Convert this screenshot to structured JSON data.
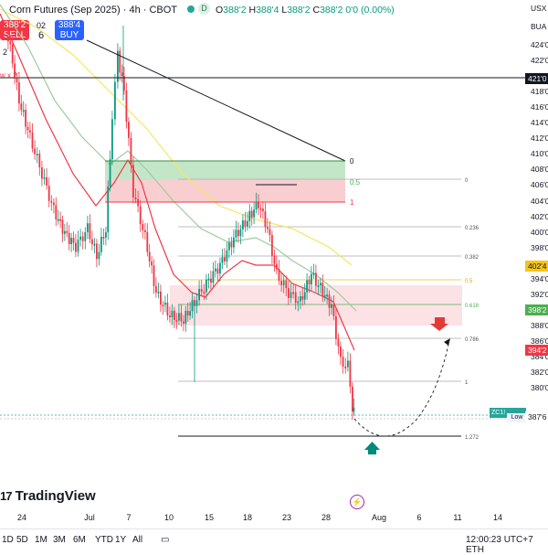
{
  "header": {
    "title": "Corn Futures (Sep 2025) · 4h · CBOT",
    "exchange_badge": "D",
    "open_label": "O",
    "open": "388'2",
    "high_label": "H",
    "high": "388'4",
    "low_label": "L",
    "low": "388'2",
    "close_label": "C",
    "close": "388'2",
    "change": "0'0 (0.00%)"
  },
  "trade": {
    "sell_price": "388'2",
    "sell_label": "SELL",
    "buy_price": "388'4",
    "buy_label": "BUY",
    "spread_top": "02",
    "spread_main": "6"
  },
  "left_label": "w x 21",
  "left_number": "2",
  "price_axis": {
    "currency": "USX",
    "unit": "BUA",
    "ticks": [
      "424'0",
      "422'0",
      "420'0",
      "418'0",
      "416'0",
      "414'0",
      "412'0",
      "410'0",
      "408'0",
      "406'0",
      "404'0",
      "402'0",
      "400'0",
      "398'0",
      "396'0",
      "394'0",
      "392'0",
      "390'0",
      "388'0",
      "386'0",
      "384'0",
      "382'0",
      "380'0"
    ],
    "tags": [
      {
        "text": "421'0",
        "color": "#131722"
      },
      {
        "text": "402'4",
        "color": "#f5c518"
      },
      {
        "text": "398'2",
        "color": "#4caf50"
      },
      {
        "text": "394'2",
        "color": "#f23645"
      }
    ],
    "last_price": "387'6",
    "zc_label": "ZC1!",
    "low_label": "Low"
  },
  "fib": {
    "levels": [
      "0",
      "0.236",
      "0.382",
      "0.5",
      "0.618",
      "0.786",
      "1",
      "1.272"
    ],
    "mini_levels": [
      "0",
      "0.5",
      "1"
    ]
  },
  "time_axis": [
    "24",
    "Jul",
    "7",
    "10",
    "15",
    "18",
    "23",
    "28",
    "Aug",
    "6",
    "11",
    "14"
  ],
  "logo": "TradingView",
  "timeframes": [
    "1D",
    "5D",
    "1M",
    "3M",
    "6M",
    "YTD",
    "1Y",
    "All"
  ],
  "clock": "12:00:23 UTC+7",
  "session": "ETH"
}
